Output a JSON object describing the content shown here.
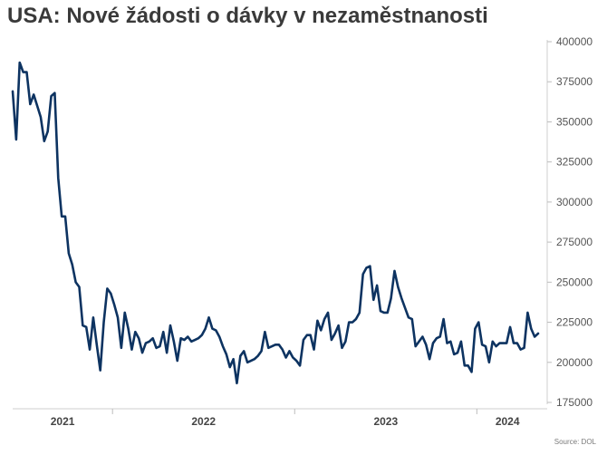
{
  "chart_data": {
    "type": "line",
    "title": "USA: Nové žádosti o dávky v nezaměstnanosti",
    "source": "Source: DOL",
    "ylim": [
      175000,
      400000
    ],
    "y_ticks": [
      175000,
      200000,
      225000,
      250000,
      275000,
      300000,
      325000,
      350000,
      375000,
      400000
    ],
    "y_tick_labels": [
      "175000",
      "200000",
      "225000",
      "250000",
      "275000",
      "300000",
      "325000",
      "350000",
      "375000",
      "400000"
    ],
    "x_tick_labels": [
      "2021",
      "2022",
      "2023",
      "2024"
    ],
    "grid": false,
    "legend": "none",
    "line_color": "#0d3361",
    "series": [
      {
        "values": [
          369000,
          339000,
          387000,
          381000,
          381000,
          361000,
          367000,
          360000,
          353000,
          338000,
          344000,
          366000,
          368000,
          315000,
          291000,
          291000,
          268000,
          261000,
          250000,
          247000,
          223000,
          222000,
          208000,
          228000,
          211000,
          195000,
          225000,
          246000,
          243000,
          236000,
          228000,
          209000,
          231000,
          221000,
          208000,
          219000,
          215000,
          206000,
          212000,
          213000,
          215000,
          209000,
          210000,
          219000,
          206000,
          223000,
          213000,
          201000,
          215000,
          214000,
          216000,
          213000,
          214000,
          215000,
          217000,
          221000,
          228000,
          221000,
          220000,
          216000,
          210000,
          205000,
          197000,
          202000,
          187000,
          204000,
          207000,
          200000,
          201000,
          202000,
          204000,
          207000,
          219000,
          209000,
          210000,
          211000,
          211000,
          208000,
          203000,
          207000,
          203000,
          201000,
          198000,
          214000,
          217000,
          217000,
          208000,
          226000,
          220000,
          227000,
          231000,
          214000,
          218000,
          223000,
          209000,
          213000,
          225000,
          225000,
          227000,
          231000,
          255000,
          259000,
          260000,
          239000,
          248000,
          232000,
          231000,
          231000,
          240000,
          257000,
          247000,
          240000,
          234000,
          228000,
          227000,
          210000,
          213000,
          216000,
          211000,
          202000,
          212000,
          215000,
          216000,
          227000,
          212000,
          213000,
          205000,
          206000,
          213000,
          198000,
          198000,
          194000,
          221000,
          225000,
          211000,
          210000,
          200000,
          213000,
          210000,
          212000,
          212000,
          212000,
          222000,
          212000,
          212000,
          208000,
          209000,
          231000,
          221000,
          216000,
          218000
        ]
      }
    ]
  }
}
